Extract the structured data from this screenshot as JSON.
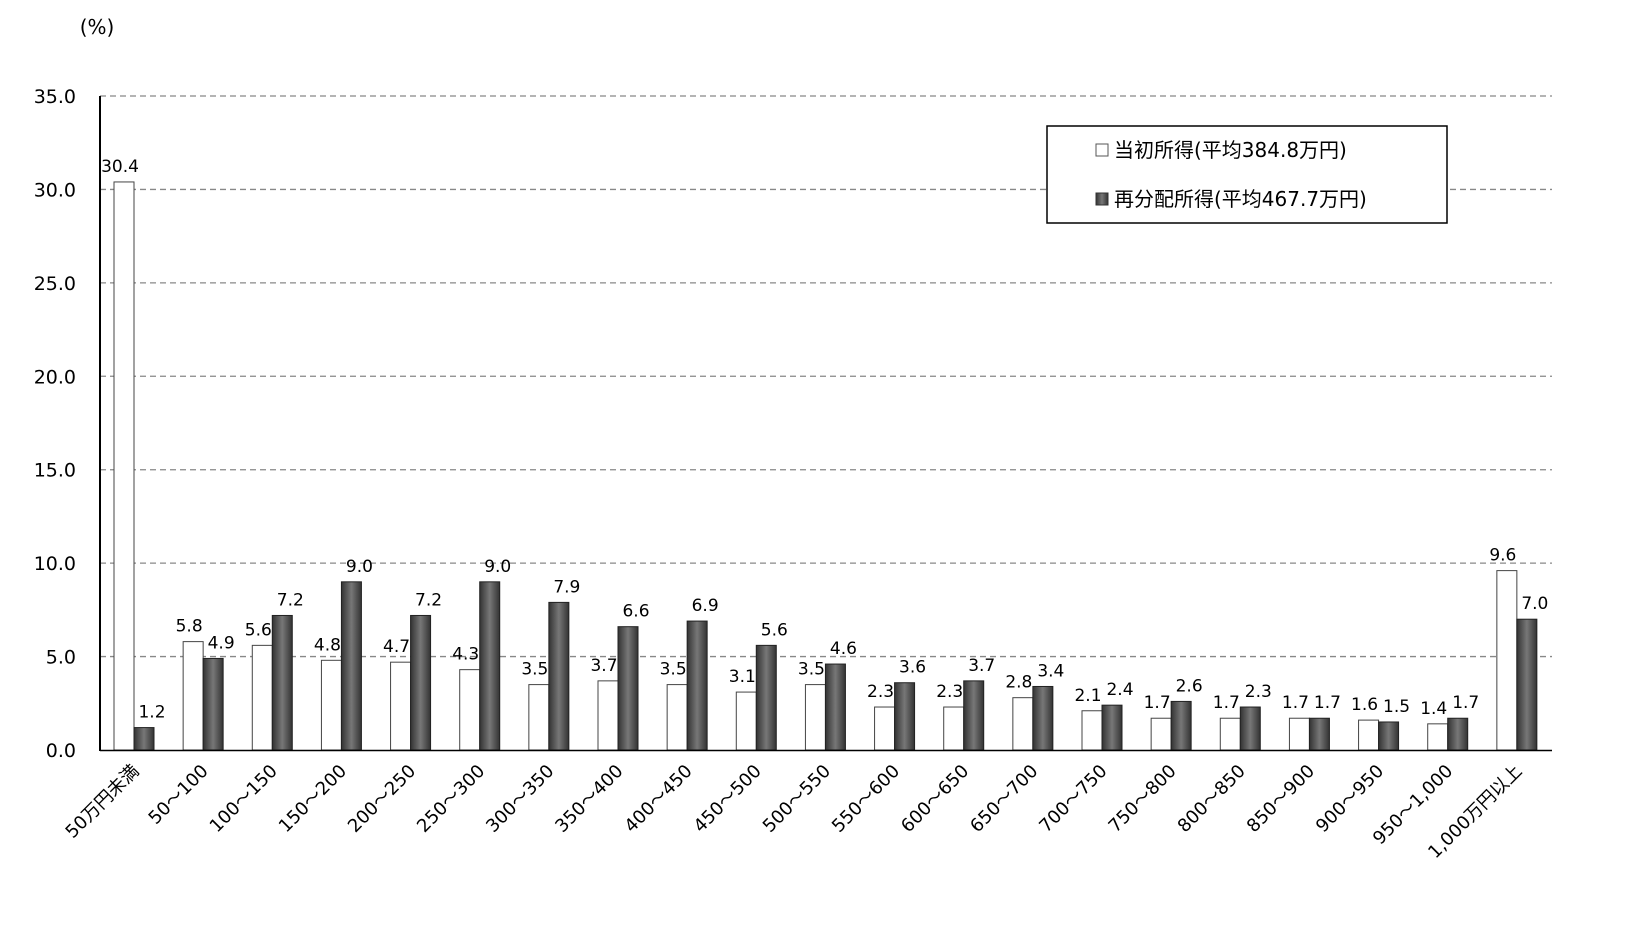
{
  "chart_data": {
    "type": "bar",
    "unit_label": "(%)",
    "categories": [
      "50万円未満",
      "50～100",
      "100～150",
      "150～200",
      "200～250",
      "250～300",
      "300～350",
      "350～400",
      "400～450",
      "450～500",
      "500～550",
      "550～600",
      "600～650",
      "650～700",
      "700～750",
      "750～800",
      "800～850",
      "850～900",
      "900～950",
      "950～1,000",
      "1,000万円以上"
    ],
    "series": [
      {
        "name": "当初所得(平均384.8万円)",
        "color": "#ffffff",
        "values": [
          30.4,
          5.8,
          5.6,
          4.8,
          4.7,
          4.3,
          3.5,
          3.7,
          3.5,
          3.1,
          3.5,
          2.3,
          2.3,
          2.8,
          2.1,
          1.7,
          1.7,
          1.7,
          1.6,
          1.4,
          9.6
        ]
      },
      {
        "name": "再分配所得(平均467.7万円)",
        "color": "#555555",
        "values": [
          1.2,
          4.9,
          7.2,
          9.0,
          7.2,
          9.0,
          7.9,
          6.6,
          6.9,
          5.6,
          4.6,
          3.6,
          3.7,
          3.4,
          2.4,
          2.6,
          2.3,
          1.7,
          1.5,
          1.7,
          7.0
        ]
      }
    ],
    "ylim": [
      0,
      35
    ],
    "yticks": [
      "0.0",
      "5.0",
      "10.0",
      "15.0",
      "20.0",
      "25.0",
      "30.0",
      "35.0"
    ],
    "grid": "horizontal dashed",
    "legend": "top-right"
  }
}
